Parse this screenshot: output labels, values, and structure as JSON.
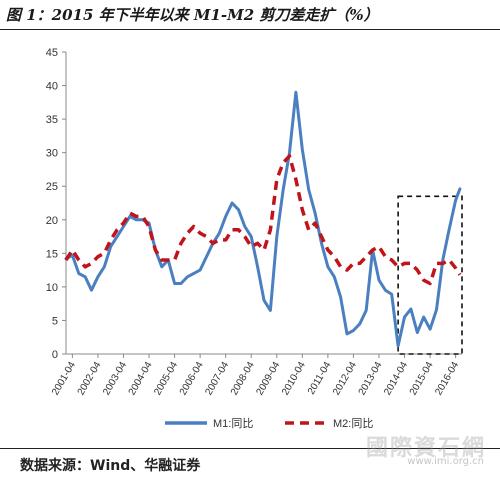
{
  "figure_title": "图 1：2015 年下半年以来 M1-M2 剪刀差走扩（%）",
  "source_note": "数据来源：Wind、华融证券",
  "watermark": "國際資石網",
  "watermark_url": "www.imi.org.cn",
  "colors": {
    "m1": "#4a7fc0",
    "m2": "#c0141c",
    "axis": "#888888",
    "text": "#333333"
  },
  "chart_data": {
    "type": "line",
    "title": "",
    "xlabel": "",
    "ylabel": "",
    "ylim": [
      0,
      45
    ],
    "yticks": [
      0,
      5,
      10,
      15,
      20,
      25,
      30,
      35,
      40,
      45
    ],
    "xticks": [
      "2001-04",
      "2002-04",
      "2003-04",
      "2004-04",
      "2005-04",
      "2006-04",
      "2007-04",
      "2008-04",
      "2009-04",
      "2010-04",
      "2011-04",
      "2012-04",
      "2013-04",
      "2014-04",
      "2015-04",
      "2016-04"
    ],
    "grid": false,
    "legend": "bottom",
    "highlight_box": {
      "x_from": "2014-01",
      "x_to": "2016-07",
      "y_from": 0,
      "y_to": 23.5
    },
    "series": [
      {
        "name": "M1:同比",
        "style": "solid",
        "points": [
          [
            "2001-01",
            14.2
          ],
          [
            "2001-04",
            14.7
          ],
          [
            "2001-07",
            12.0
          ],
          [
            "2001-10",
            11.5
          ],
          [
            "2002-01",
            9.5
          ],
          [
            "2002-04",
            11.5
          ],
          [
            "2002-07",
            13.0
          ],
          [
            "2002-10",
            16.0
          ],
          [
            "2003-01",
            17.5
          ],
          [
            "2003-04",
            19.0
          ],
          [
            "2003-07",
            20.5
          ],
          [
            "2003-10",
            20.0
          ],
          [
            "2004-01",
            20.0
          ],
          [
            "2004-04",
            19.5
          ],
          [
            "2004-07",
            15.5
          ],
          [
            "2004-10",
            13.0
          ],
          [
            "2005-01",
            14.0
          ],
          [
            "2005-04",
            10.5
          ],
          [
            "2005-07",
            10.5
          ],
          [
            "2005-10",
            11.5
          ],
          [
            "2006-01",
            12.0
          ],
          [
            "2006-04",
            12.5
          ],
          [
            "2006-07",
            14.5
          ],
          [
            "2006-10",
            16.5
          ],
          [
            "2007-01",
            18.0
          ],
          [
            "2007-04",
            20.5
          ],
          [
            "2007-07",
            22.5
          ],
          [
            "2007-10",
            21.5
          ],
          [
            "2008-01",
            19.0
          ],
          [
            "2008-04",
            17.5
          ],
          [
            "2008-07",
            13.0
          ],
          [
            "2008-10",
            8.0
          ],
          [
            "2009-01",
            6.5
          ],
          [
            "2009-04",
            17.5
          ],
          [
            "2009-07",
            24.5
          ],
          [
            "2009-10",
            30.0
          ],
          [
            "2010-01",
            39.0
          ],
          [
            "2010-04",
            30.5
          ],
          [
            "2010-07",
            24.5
          ],
          [
            "2010-10",
            21.0
          ],
          [
            "2011-01",
            16.5
          ],
          [
            "2011-04",
            13.0
          ],
          [
            "2011-07",
            11.5
          ],
          [
            "2011-10",
            8.5
          ],
          [
            "2012-01",
            3.0
          ],
          [
            "2012-04",
            3.5
          ],
          [
            "2012-07",
            4.5
          ],
          [
            "2012-10",
            6.5
          ],
          [
            "2013-01",
            15.5
          ],
          [
            "2013-04",
            11.0
          ],
          [
            "2013-07",
            9.5
          ],
          [
            "2013-10",
            8.9
          ],
          [
            "2014-01",
            1.2
          ],
          [
            "2014-04",
            5.5
          ],
          [
            "2014-07",
            6.7
          ],
          [
            "2014-10",
            3.2
          ],
          [
            "2015-01",
            5.5
          ],
          [
            "2015-04",
            3.7
          ],
          [
            "2015-07",
            6.6
          ],
          [
            "2015-10",
            14.0
          ],
          [
            "2016-01",
            18.6
          ],
          [
            "2016-04",
            22.9
          ],
          [
            "2016-06",
            24.6
          ]
        ]
      },
      {
        "name": "M2:同比",
        "style": "dashed",
        "points": [
          [
            "2001-01",
            14.0
          ],
          [
            "2001-04",
            15.5
          ],
          [
            "2001-07",
            14.0
          ],
          [
            "2001-10",
            13.0
          ],
          [
            "2002-01",
            13.5
          ],
          [
            "2002-04",
            14.5
          ],
          [
            "2002-07",
            15.0
          ],
          [
            "2002-10",
            17.0
          ],
          [
            "2003-01",
            18.5
          ],
          [
            "2003-04",
            19.5
          ],
          [
            "2003-07",
            21.0
          ],
          [
            "2003-10",
            20.5
          ],
          [
            "2004-01",
            20.5
          ],
          [
            "2004-04",
            19.0
          ],
          [
            "2004-07",
            15.5
          ],
          [
            "2004-10",
            14.0
          ],
          [
            "2005-01",
            14.0
          ],
          [
            "2005-04",
            14.0
          ],
          [
            "2005-07",
            16.5
          ],
          [
            "2005-10",
            18.0
          ],
          [
            "2006-01",
            19.0
          ],
          [
            "2006-04",
            18.0
          ],
          [
            "2006-07",
            17.5
          ],
          [
            "2006-10",
            16.5
          ],
          [
            "2007-01",
            17.0
          ],
          [
            "2007-04",
            17.0
          ],
          [
            "2007-07",
            18.5
          ],
          [
            "2007-10",
            18.5
          ],
          [
            "2008-01",
            17.5
          ],
          [
            "2008-04",
            16.0
          ],
          [
            "2008-07",
            16.5
          ],
          [
            "2008-10",
            15.5
          ],
          [
            "2009-01",
            18.5
          ],
          [
            "2009-04",
            26.0
          ],
          [
            "2009-07",
            28.5
          ],
          [
            "2009-10",
            29.5
          ],
          [
            "2010-01",
            26.0
          ],
          [
            "2010-04",
            21.5
          ],
          [
            "2010-07",
            18.5
          ],
          [
            "2010-10",
            19.5
          ],
          [
            "2011-01",
            17.5
          ],
          [
            "2011-04",
            15.5
          ],
          [
            "2011-07",
            14.5
          ],
          [
            "2011-10",
            13.0
          ],
          [
            "2012-01",
            12.5
          ],
          [
            "2012-04",
            13.5
          ],
          [
            "2012-07",
            13.5
          ],
          [
            "2012-10",
            14.5
          ],
          [
            "2013-01",
            15.5
          ],
          [
            "2013-04",
            16.0
          ],
          [
            "2013-07",
            14.5
          ],
          [
            "2013-10",
            14.0
          ],
          [
            "2014-01",
            13.0
          ],
          [
            "2014-04",
            13.5
          ],
          [
            "2014-07",
            13.5
          ],
          [
            "2014-10",
            12.5
          ],
          [
            "2015-01",
            11.0
          ],
          [
            "2015-04",
            10.5
          ],
          [
            "2015-07",
            13.5
          ],
          [
            "2015-10",
            13.5
          ],
          [
            "2016-01",
            14.0
          ],
          [
            "2016-04",
            12.8
          ],
          [
            "2016-06",
            11.8
          ]
        ]
      }
    ]
  }
}
